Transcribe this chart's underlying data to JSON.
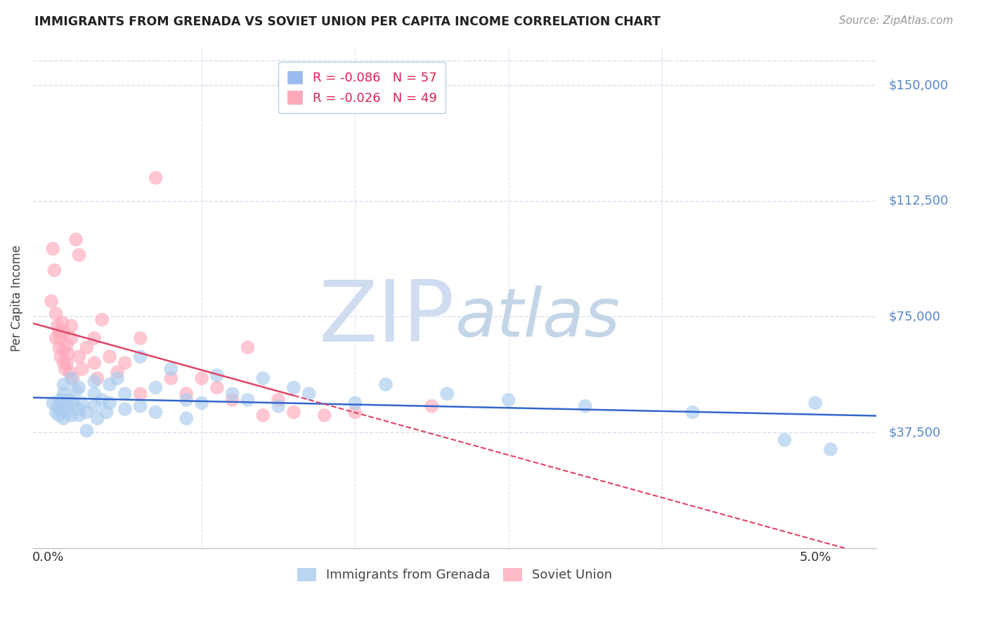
{
  "title": "IMMIGRANTS FROM GRENADA VS SOVIET UNION PER CAPITA INCOME CORRELATION CHART",
  "source": "Source: ZipAtlas.com",
  "ylabel": "Per Capita Income",
  "ytick_labels": [
    "$37,500",
    "$75,000",
    "$112,500",
    "$150,000"
  ],
  "ytick_values": [
    37500,
    75000,
    112500,
    150000
  ],
  "ymin": 0,
  "ymax": 162000,
  "xmin": -0.001,
  "xmax": 0.054,
  "legend_line1_r": "-0.086",
  "legend_line1_n": "57",
  "legend_line2_r": "-0.026",
  "legend_line2_n": "49",
  "legend_color1": "#99bbee",
  "legend_color2": "#ffaabb",
  "scatter_color_blue": "#aaccee",
  "scatter_color_pink": "#ffaabb",
  "trendline_blue_color": "#3366cc",
  "trendline_pink_color": "#dd4466",
  "trendline_pink_solid_end": 0.016,
  "watermark_zip": "ZIP",
  "watermark_atlas": "atlas",
  "watermark_color_zip": "#d0ddf0",
  "watermark_color_atlas": "#c5d5e8",
  "background_color": "#ffffff",
  "grid_color": "#d8dff0",
  "label_color_right": "#5588cc",
  "title_color": "#222222",
  "source_color": "#999999",
  "bottom_legend_color": "#444444",
  "grenada_x": [
    0.0003,
    0.0005,
    0.0006,
    0.0007,
    0.0008,
    0.0009,
    0.001,
    0.001,
    0.001,
    0.0012,
    0.0012,
    0.0013,
    0.0015,
    0.0015,
    0.0016,
    0.0018,
    0.002,
    0.002,
    0.002,
    0.0022,
    0.0025,
    0.0025,
    0.003,
    0.003,
    0.003,
    0.0032,
    0.0035,
    0.0038,
    0.004,
    0.004,
    0.0045,
    0.005,
    0.005,
    0.006,
    0.006,
    0.007,
    0.007,
    0.008,
    0.009,
    0.009,
    0.01,
    0.011,
    0.012,
    0.013,
    0.014,
    0.015,
    0.016,
    0.017,
    0.02,
    0.022,
    0.026,
    0.03,
    0.035,
    0.042,
    0.048,
    0.05,
    0.051
  ],
  "grenada_y": [
    47000,
    44000,
    46000,
    43000,
    48000,
    45000,
    50000,
    42000,
    53000,
    46000,
    44000,
    48000,
    55000,
    43000,
    47000,
    51000,
    45000,
    52000,
    43000,
    47000,
    38000,
    44000,
    50000,
    46000,
    54000,
    42000,
    48000,
    44000,
    47000,
    53000,
    55000,
    45000,
    50000,
    62000,
    46000,
    52000,
    44000,
    58000,
    48000,
    42000,
    47000,
    56000,
    50000,
    48000,
    55000,
    46000,
    52000,
    50000,
    47000,
    53000,
    50000,
    48000,
    46000,
    44000,
    35000,
    47000,
    32000
  ],
  "soviet_x": [
    0.0002,
    0.0003,
    0.0004,
    0.0005,
    0.0005,
    0.0006,
    0.0007,
    0.0007,
    0.0008,
    0.0008,
    0.0009,
    0.001,
    0.001,
    0.001,
    0.0011,
    0.0012,
    0.0012,
    0.0013,
    0.0014,
    0.0015,
    0.0015,
    0.0016,
    0.0018,
    0.002,
    0.002,
    0.0022,
    0.0025,
    0.003,
    0.003,
    0.0032,
    0.0035,
    0.004,
    0.0045,
    0.005,
    0.006,
    0.006,
    0.007,
    0.008,
    0.009,
    0.01,
    0.011,
    0.012,
    0.013,
    0.014,
    0.015,
    0.016,
    0.018,
    0.02,
    0.025
  ],
  "soviet_y": [
    80000,
    97000,
    90000,
    76000,
    68000,
    72000,
    65000,
    70000,
    62000,
    68000,
    73000,
    60000,
    64000,
    70000,
    58000,
    66000,
    60000,
    63000,
    57000,
    72000,
    68000,
    55000,
    100000,
    95000,
    62000,
    58000,
    65000,
    68000,
    60000,
    55000,
    74000,
    62000,
    57000,
    60000,
    68000,
    50000,
    120000,
    55000,
    50000,
    55000,
    52000,
    48000,
    65000,
    43000,
    48000,
    44000,
    43000,
    44000,
    46000
  ]
}
